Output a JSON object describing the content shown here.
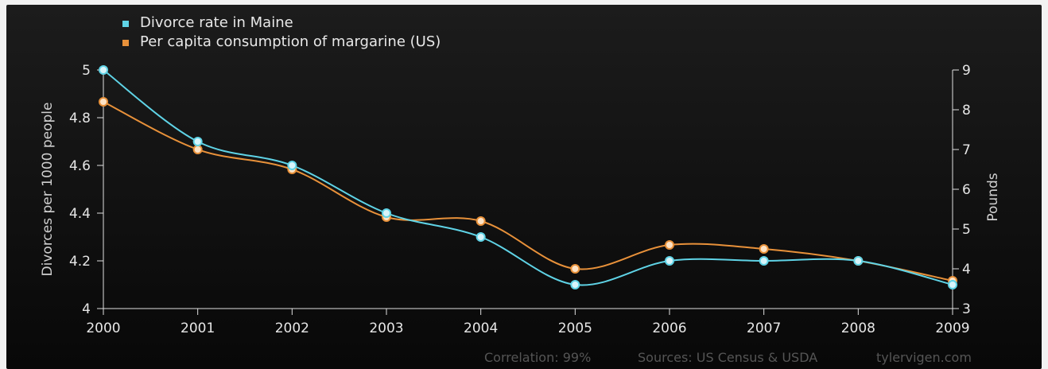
{
  "chart_data": {
    "type": "line",
    "x": [
      2000,
      2001,
      2002,
      2003,
      2004,
      2005,
      2006,
      2007,
      2008,
      2009
    ],
    "series": [
      {
        "name": "Divorce rate in Maine",
        "axis": "left",
        "color": "#5fd3e6",
        "values": [
          5.0,
          4.7,
          4.6,
          4.4,
          4.3,
          4.1,
          4.2,
          4.2,
          4.2,
          4.1
        ]
      },
      {
        "name": "Per capita consumption of margarine (US)",
        "axis": "right",
        "color": "#e8913a",
        "values": [
          8.2,
          7.0,
          6.5,
          5.3,
          5.2,
          4.0,
          4.6,
          4.5,
          4.2,
          3.7
        ]
      }
    ],
    "xlabel": "",
    "ylabel_left": "Divorces per 1000 people",
    "ylabel_right": "Pounds",
    "ylim_left": [
      4,
      5
    ],
    "yticks_left": [
      "4",
      "4.2",
      "4.4",
      "4.6",
      "4.8",
      "5"
    ],
    "ylim_right": [
      3,
      9
    ],
    "yticks_right": [
      "3",
      "4",
      "5",
      "6",
      "7",
      "8",
      "9"
    ],
    "xticks": [
      "2000",
      "2001",
      "2002",
      "2003",
      "2004",
      "2005",
      "2006",
      "2007",
      "2008",
      "2009"
    ],
    "legend_position": "top-left",
    "grid": false
  },
  "footer": {
    "correlation": "Correlation: 99%",
    "sources": "Sources: US Census & USDA",
    "site": "tylervigen.com"
  }
}
